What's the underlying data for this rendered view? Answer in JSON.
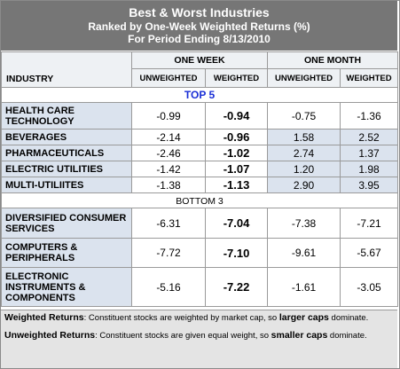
{
  "title": "Best & Worst Industries",
  "subtitle1": "Ranked by One-Week Weighted Returns (%)",
  "subtitle2": "For Period Ending 8/13/2010",
  "headers": {
    "industry": "INDUSTRY",
    "one_week": "ONE WEEK",
    "one_month": "ONE MONTH",
    "unweighted": "UNWEIGHTED",
    "weighted": "WEIGHTED"
  },
  "top_label": "TOP 5",
  "bottom_label": "BOTTOM 3",
  "top": [
    {
      "name": "HEALTH CARE TECHNOLOGY",
      "wk_unw": "-0.99",
      "wk_w": "-0.94",
      "mo_unw": "-0.75",
      "mo_w": "-1.36"
    },
    {
      "name": "BEVERAGES",
      "wk_unw": "-2.14",
      "wk_w": "-0.96",
      "mo_unw": "1.58",
      "mo_w": "2.52"
    },
    {
      "name": "PHARMACEUTICALS",
      "wk_unw": "-2.46",
      "wk_w": "-1.02",
      "mo_unw": "2.74",
      "mo_w": "1.37"
    },
    {
      "name": "ELECTRIC UTILITIES",
      "wk_unw": "-1.42",
      "wk_w": "-1.07",
      "mo_unw": "1.20",
      "mo_w": "1.98"
    },
    {
      "name": "MULTI-UTILIITES",
      "wk_unw": "-1.38",
      "wk_w": "-1.13",
      "mo_unw": "2.90",
      "mo_w": "3.95"
    }
  ],
  "bottom": [
    {
      "name": "DIVERSIFIED CONSUMER SERVICES",
      "wk_unw": "-6.31",
      "wk_w": "-7.04",
      "mo_unw": "-7.38",
      "mo_w": "-7.21"
    },
    {
      "name": "COMPUTERS & PERIPHERALS",
      "wk_unw": "-7.72",
      "wk_w": "-7.10",
      "mo_unw": "-9.61",
      "mo_w": "-5.67"
    },
    {
      "name": "ELECTRONIC INSTRUMENTS & COMPONENTS",
      "wk_unw": "-5.16",
      "wk_w": "-7.22",
      "mo_unw": "-1.61",
      "mo_w": "-3.05"
    }
  ],
  "notes": {
    "weighted_label": "Weighted Returns",
    "weighted_text1": ":  Constituent stocks are weighted by market cap, so ",
    "weighted_bold": "larger caps",
    "weighted_text2": " dominate.",
    "unweighted_label": "Unweighted Returns",
    "unweighted_text1": ":  Constituent stocks are given equal weight, so ",
    "unweighted_bold": "smaller caps",
    "unweighted_text2": " dominate."
  },
  "colors": {
    "header_bg": "#767676",
    "name_bg": "#dbe3ee",
    "top_label": "#1a2fd6",
    "notes_bg": "#e4e4e4"
  }
}
